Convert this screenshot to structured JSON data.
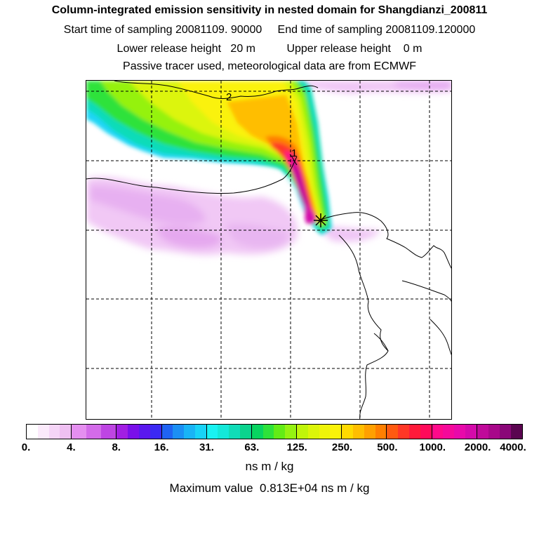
{
  "header": {
    "title": "Column-integrated emission sensitivity in nested domain for Shangdianzi_200811",
    "line2": "Start time of sampling 20081109. 90000     End time of sampling 20081109.120000",
    "line3": "Lower release height   20 m          Upper release height    0 m",
    "line4": "Passive tracer used, meteorological data are from ECMWF"
  },
  "map": {
    "contour_labels": [
      "2",
      "1"
    ],
    "station_marker": "star-icon"
  },
  "colorbar": {
    "tick_labels": [
      "0.",
      "4.",
      "8.",
      "16.",
      "31.",
      "63.",
      "125.",
      "250.",
      "500.",
      "1000.",
      "2000.",
      "4000."
    ],
    "segments": [
      [
        "#ffffff",
        "#fbeafb",
        "#f5d5f7",
        "#efc0f2"
      ],
      [
        "#e58ff0",
        "#d36be9",
        "#be45e3"
      ],
      [
        "#a21fe3",
        "#7a10ea",
        "#5a18ee",
        "#3b29f3"
      ],
      [
        "#1f63f3",
        "#1b8ff4",
        "#19b4f6",
        "#18d3f7"
      ],
      [
        "#19f2f2",
        "#14e8d9",
        "#10dcb8",
        "#0bd38d"
      ],
      [
        "#08d460",
        "#2ee23a",
        "#63ec16",
        "#95f211"
      ],
      [
        "#c0f50a",
        "#dcf50a",
        "#eff40a",
        "#faf20a"
      ],
      [
        "#ffda00",
        "#ffbe00",
        "#ffa000",
        "#ff7f00"
      ],
      [
        "#ff5a10",
        "#ff3726",
        "#ff1a3a",
        "#ff0a5a"
      ],
      [
        "#ff0a8a",
        "#f50a9a",
        "#e80aaa",
        "#d40aaa"
      ],
      [
        "#c00a9a",
        "#a8088a",
        "#8a0778",
        "#5a0550"
      ]
    ]
  },
  "units": "ns m / kg",
  "max_value": "Maximum value  0.813E+04 ns m / kg"
}
